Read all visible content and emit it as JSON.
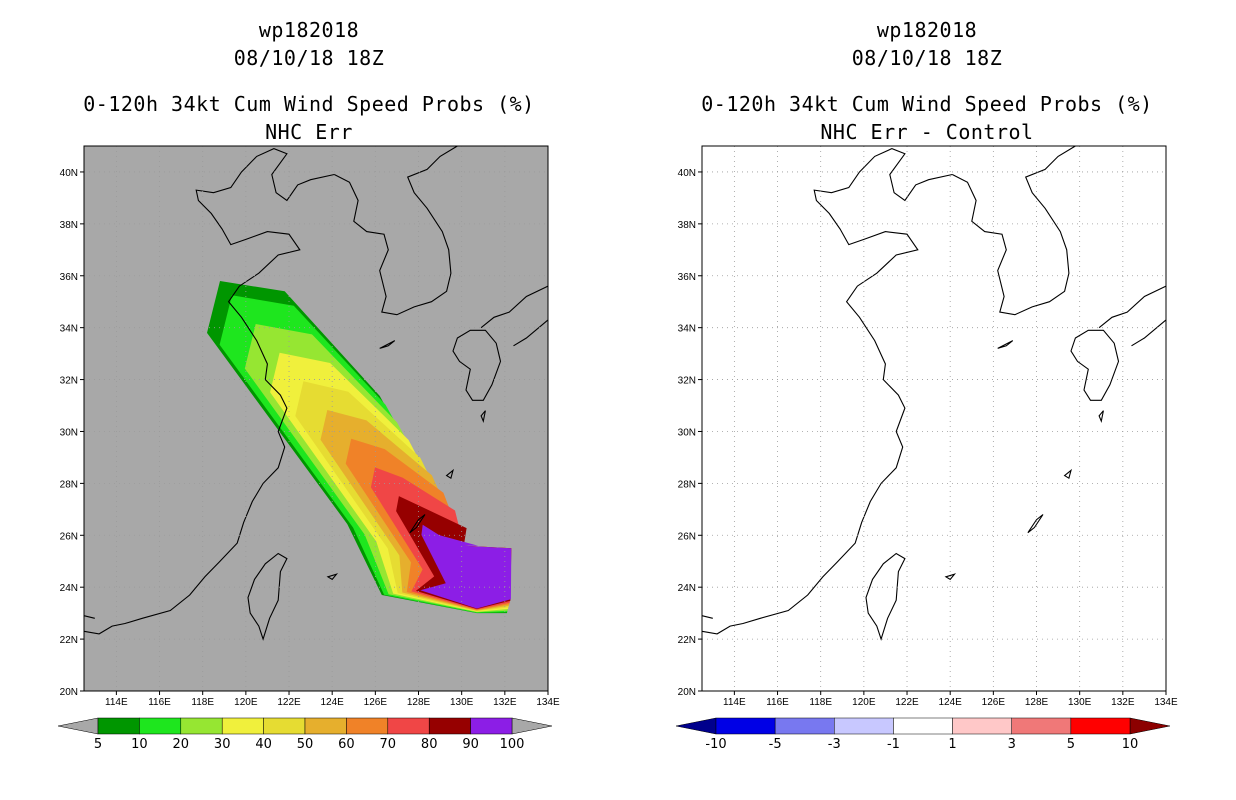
{
  "panels": [
    {
      "storm_id": "wp182018",
      "datetime": "08/10/18 18Z",
      "product": "0-120h 34kt Cum Wind Speed Probs (%)",
      "subtitle": "NHC Err",
      "background": "#a8a8a8",
      "colorbar": {
        "colors": [
          "#009600",
          "#1ee61e",
          "#96e632",
          "#f0f03c",
          "#e6dc32",
          "#e6af2d",
          "#f08228",
          "#f04646",
          "#960000",
          "#8c1ee6"
        ],
        "labels": [
          "5",
          "10",
          "20",
          "30",
          "40",
          "50",
          "60",
          "70",
          "80",
          "90",
          "100"
        ],
        "under_color": "#a8a8a8",
        "over_color": "#a8a8a8"
      }
    },
    {
      "storm_id": "wp182018",
      "datetime": "08/10/18 18Z",
      "product": "0-120h 34kt Cum Wind Speed Probs (%)",
      "subtitle": "NHC Err - Control",
      "background": "#ffffff",
      "colorbar": {
        "colors": [
          "#0000e6",
          "#7878f0",
          "#c8c8ff",
          "#ffffff",
          "#ffc8c8",
          "#f07878",
          "#ff0000"
        ],
        "labels": [
          "-10",
          "-5",
          "-3",
          "-1",
          "1",
          "3",
          "5",
          "10"
        ],
        "under_color": "#00008c",
        "over_color": "#8c0000"
      }
    }
  ],
  "map": {
    "lon_range": [
      112.5,
      134
    ],
    "lat_range": [
      20,
      41
    ],
    "lon_ticks": [
      "114E",
      "116E",
      "118E",
      "120E",
      "122E",
      "124E",
      "126E",
      "128E",
      "130E",
      "132E",
      "134E"
    ],
    "lat_ticks": [
      "20N",
      "22N",
      "24N",
      "26N",
      "28N",
      "30N",
      "32N",
      "34N",
      "36N",
      "38N",
      "40N"
    ]
  },
  "probability_field": {
    "levels": [
      5,
      10,
      20,
      30,
      40,
      50,
      60,
      70,
      80,
      90
    ],
    "center_lon": 131.3,
    "center_lat": 24.1
  }
}
